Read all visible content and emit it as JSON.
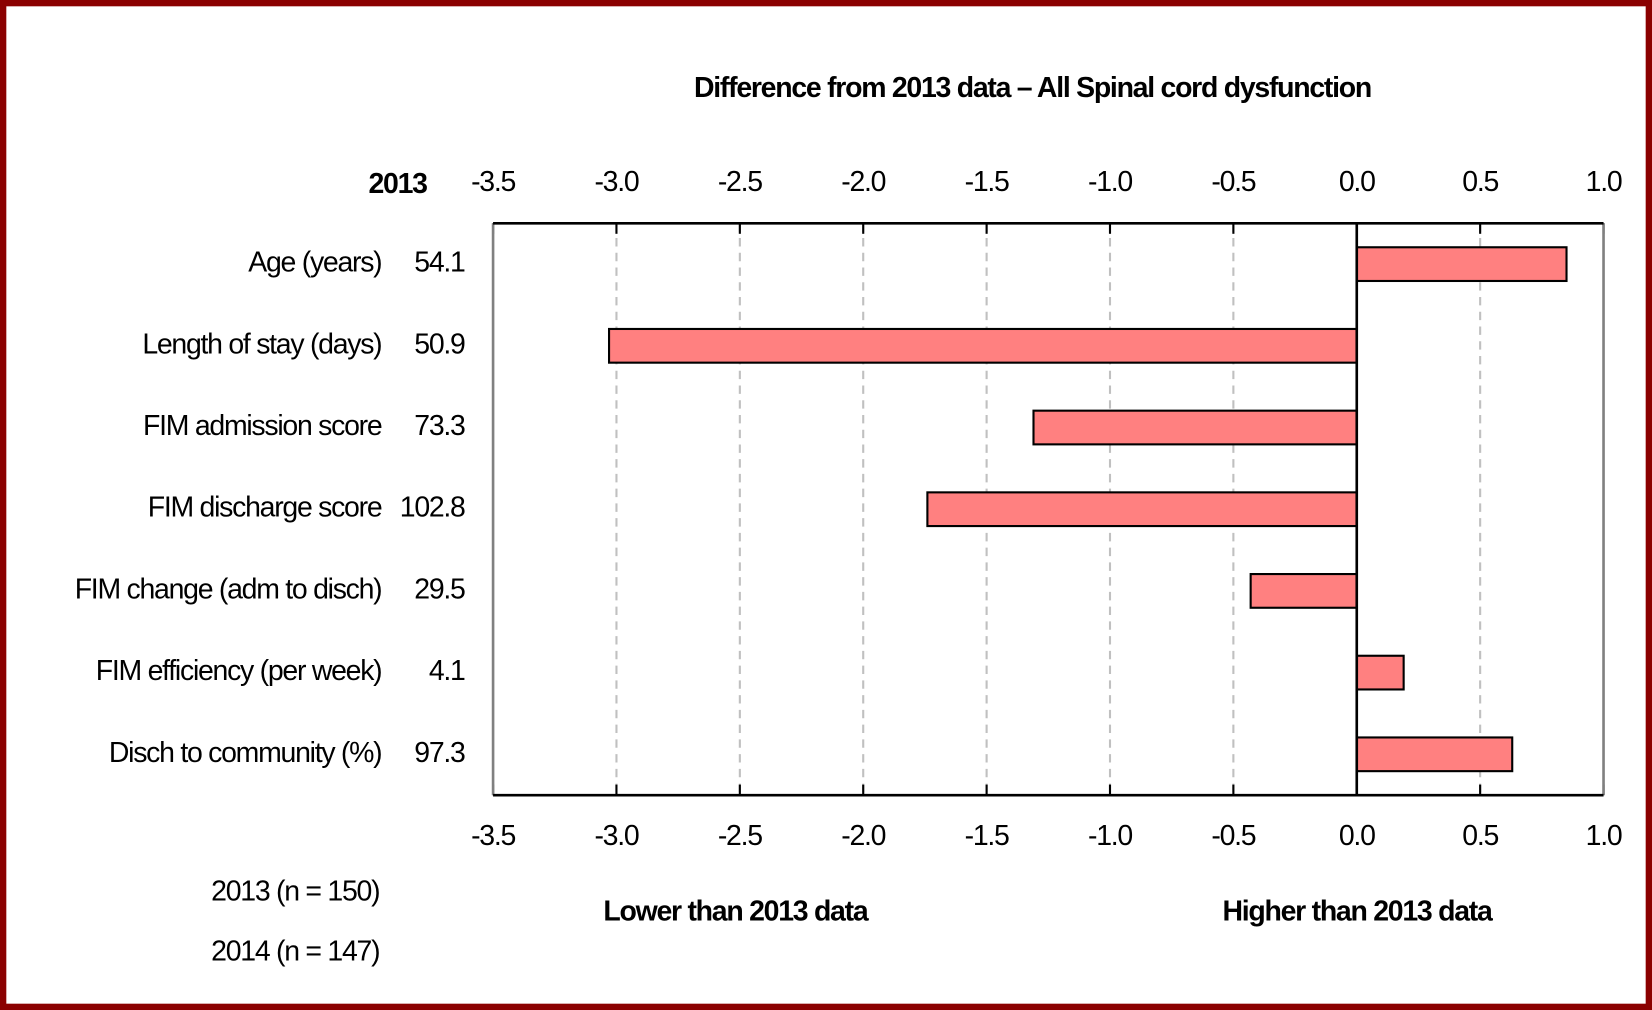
{
  "chart_data": {
    "type": "hbar",
    "title": "Difference from 2013 data – All Spinal cord dysfunction",
    "categories": [
      "Age (years)",
      "Length of stay (days)",
      "FIM admission score",
      "FIM discharge score",
      "FIM change (adm to disch)",
      "FIM efficiency (per week)",
      "Disch to community (%)"
    ],
    "values": [
      0.85,
      -3.03,
      -1.31,
      -1.74,
      -0.43,
      0.19,
      0.63
    ],
    "color": "#ff8080",
    "table_header": "2013",
    "table_values": [
      54.1,
      50.9,
      73.3,
      102.8,
      29.5,
      4.1,
      97.3
    ],
    "xlim": [
      -3.5,
      1.0
    ],
    "xticks": [
      {
        "value": -3.5,
        "label": "-3.5"
      },
      {
        "value": -3.0,
        "label": "-3.0"
      },
      -2.5,
      {
        "value": -2.0,
        "label": "-2.0"
      },
      -1.5,
      {
        "value": -1.0,
        "label": "-1.0"
      },
      -0.5,
      {
        "value": 0.0,
        "label": "0.0"
      },
      0.5,
      {
        "value": 1.0,
        "label": "1.0"
      }
    ],
    "grid": true,
    "annotations": [
      "Lower than 2013 data",
      "Higher than 2013 data"
    ],
    "footnotes": [
      "2013  (n = 150)",
      "2014  (n = 147)"
    ]
  }
}
